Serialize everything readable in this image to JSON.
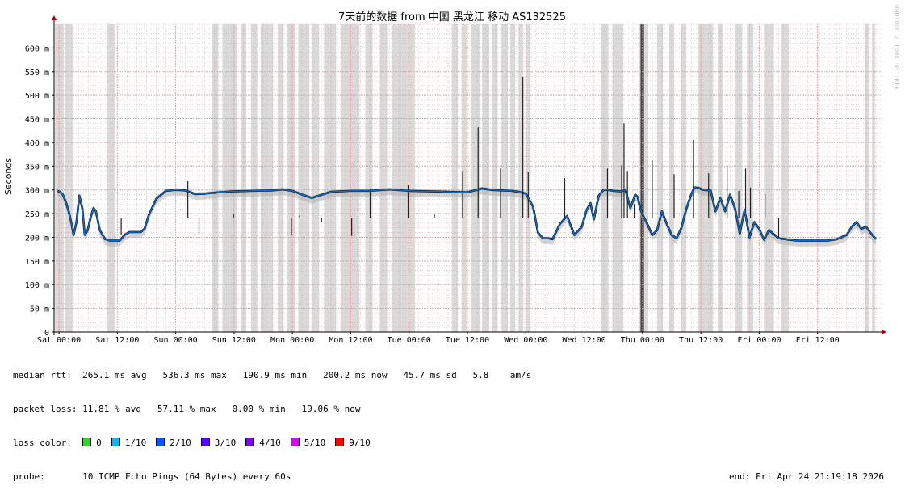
{
  "chart_data": {
    "type": "line",
    "title": "7天前的数据 from 中国 黑龙江 移动 AS132525",
    "ylabel": "Seconds",
    "ylim": [
      0,
      0.65
    ],
    "y_ticks": [
      0,
      0.05,
      0.1,
      0.15,
      0.2,
      0.25,
      0.3,
      0.35,
      0.4,
      0.45,
      0.5,
      0.55,
      0.6
    ],
    "y_tick_labels": [
      "0",
      "50 m",
      "100 m",
      "150 m",
      "200 m",
      "250 m",
      "300 m",
      "350 m",
      "400 m",
      "450 m",
      "500 m",
      "550 m",
      "600 m"
    ],
    "x_unit": "hours",
    "xlim": [
      -1,
      169
    ],
    "x_tick_labels": [
      "Sat 00:00",
      "Sat 12:00",
      "Sun 00:00",
      "Sun 12:00",
      "Mon 00:00",
      "Mon 12:00",
      "Tue 00:00",
      "Tue 12:00",
      "Wed 00:00",
      "Wed 12:00",
      "Thu 00:00",
      "Thu 12:00",
      "Fri 00:00",
      "Fri 12:00"
    ],
    "x_tick_values": [
      0,
      12,
      24,
      36,
      48,
      60,
      72,
      84,
      96,
      108,
      120,
      132,
      144,
      156
    ],
    "grid": true,
    "series": [
      {
        "color": "#0a6fd6",
        "x": [
          -0.3,
          0.2,
          0.8,
          1.4,
          2.0,
          2.6,
          3.0,
          3.6,
          4.2,
          4.8,
          5.3,
          5.9,
          6.5,
          7.1,
          7.6,
          8.4,
          9.5,
          10.5,
          11.5,
          12.5,
          13.5,
          14.5,
          15.3,
          16.0,
          16.8,
          17.6,
          18.5,
          20.0,
          22.0,
          24.0,
          26.0,
          28.0,
          30.0,
          33.0,
          36.0,
          40.0,
          44.0,
          46.0,
          48.0,
          50.0,
          52.0,
          56.0,
          60.0,
          64.0,
          68.0,
          72.0,
          76.0,
          80.0,
          84.0,
          87.0,
          89.0,
          91.0,
          93.0,
          94.5,
          96.0,
          97.5,
          98.5,
          99.5,
          100.5,
          101.5,
          103.0,
          104.5,
          106.0,
          107.5,
          108.5,
          109.3,
          110.0,
          111.0,
          112.0,
          113.0,
          114.0,
          115.5,
          116.5,
          117.5,
          118.5,
          119.0,
          119.5,
          120.0,
          121.0,
          122.0,
          123.0,
          124.0,
          125.0,
          126.0,
          127.0,
          128.0,
          129.0,
          130.0,
          130.7,
          131.5,
          132.5,
          134.0,
          135.0,
          136.0,
          137.0,
          138.0,
          139.0,
          140.0,
          141.0,
          142.0,
          143.0,
          144.0,
          145.0,
          146.0,
          148.0,
          150.0,
          152.0,
          154.0,
          156.0,
          158.0,
          160.0,
          162.0,
          163.0,
          164.0,
          165.0,
          166.0,
          167.0,
          168.0
        ],
        "y": [
          0.298,
          0.296,
          0.29,
          0.275,
          0.255,
          0.228,
          0.205,
          0.232,
          0.288,
          0.262,
          0.205,
          0.215,
          0.242,
          0.262,
          0.255,
          0.215,
          0.196,
          0.193,
          0.193,
          0.193,
          0.205,
          0.211,
          0.211,
          0.211,
          0.211,
          0.218,
          0.248,
          0.281,
          0.298,
          0.3,
          0.299,
          0.291,
          0.292,
          0.295,
          0.297,
          0.298,
          0.299,
          0.301,
          0.298,
          0.29,
          0.283,
          0.296,
          0.298,
          0.298,
          0.301,
          0.298,
          0.297,
          0.296,
          0.295,
          0.303,
          0.3,
          0.299,
          0.298,
          0.296,
          0.292,
          0.265,
          0.21,
          0.198,
          0.198,
          0.196,
          0.228,
          0.245,
          0.205,
          0.222,
          0.258,
          0.272,
          0.238,
          0.288,
          0.3,
          0.3,
          0.298,
          0.297,
          0.3,
          0.262,
          0.29,
          0.285,
          0.262,
          0.248,
          0.228,
          0.205,
          0.215,
          0.255,
          0.228,
          0.205,
          0.198,
          0.22,
          0.26,
          0.29,
          0.305,
          0.304,
          0.3,
          0.299,
          0.255,
          0.283,
          0.255,
          0.29,
          0.262,
          0.208,
          0.258,
          0.2,
          0.232,
          0.218,
          0.195,
          0.215,
          0.198,
          0.195,
          0.193,
          0.193,
          0.193,
          0.193,
          0.196,
          0.205,
          0.222,
          0.232,
          0.218,
          0.222,
          0.208,
          0.196
        ]
      }
    ],
    "spikes": {
      "x": [
        12.8,
        26.5,
        28.8,
        35.9,
        47.8,
        49.5,
        54.0,
        60.2,
        64.0,
        71.8,
        77.2,
        83.0,
        86.2,
        90.8,
        95.4,
        96.5,
        104.0,
        112.8,
        115.7,
        116.2,
        116.9,
        118.3,
        122.0,
        126.5,
        130.5,
        133.6,
        137.4,
        139.8,
        141.2,
        142.2,
        145.2,
        148.0
      ],
      "y": [
        0.205,
        0.32,
        0.205,
        0.249,
        0.205,
        0.247,
        0.232,
        0.203,
        0.302,
        0.31,
        0.249,
        0.34,
        0.432,
        0.345,
        0.538,
        0.337,
        0.325,
        0.345,
        0.352,
        0.44,
        0.34,
        0.27,
        0.362,
        0.333,
        0.405,
        0.335,
        0.35,
        0.298,
        0.345,
        0.305,
        0.29,
        0.2
      ]
    },
    "loss_bands": [
      [
        -0.8,
        1.0
      ],
      [
        1.3,
        2.8
      ],
      [
        10.0,
        11.5
      ],
      [
        31.5,
        32.8
      ],
      [
        33.6,
        36.5
      ],
      [
        37.5,
        38.5
      ],
      [
        39.5,
        40.8
      ],
      [
        41.5,
        44.0
      ],
      [
        45.0,
        46.2
      ],
      [
        46.8,
        48.5
      ],
      [
        49.2,
        51.5
      ],
      [
        52.0,
        53.5
      ],
      [
        54.5,
        57.0
      ],
      [
        58.0,
        61.8
      ],
      [
        63.0,
        64.5
      ],
      [
        66.0,
        67.5
      ],
      [
        68.5,
        73.2
      ],
      [
        80.8,
        82.0
      ],
      [
        82.8,
        83.8
      ],
      [
        84.8,
        86.5
      ],
      [
        87.0,
        88.5
      ],
      [
        89.0,
        90.2
      ],
      [
        91.0,
        92.3
      ],
      [
        92.8,
        93.8
      ],
      [
        94.5,
        95.5
      ],
      [
        96.0,
        97.0
      ],
      [
        111.5,
        113.0
      ],
      [
        113.8,
        116.0
      ],
      [
        119.2,
        121.2
      ],
      [
        123.0,
        124.2
      ],
      [
        125.5,
        126.5
      ],
      [
        128.0,
        129.0
      ],
      [
        131.5,
        134.5
      ],
      [
        135.5,
        136.5
      ],
      [
        139.0,
        140.5
      ],
      [
        141.5,
        142.8
      ],
      [
        145.0,
        147.0
      ],
      [
        148.5,
        150.0
      ],
      [
        165.8,
        166.5
      ],
      [
        167.2,
        167.8
      ]
    ],
    "dense_loss_bands": [
      [
        119.6,
        120.3
      ]
    ],
    "watermark": "RRDTOOL / TOBI OETIKER"
  },
  "stats": {
    "median_rtt_label": "median rtt:",
    "median_rtt_values": "265.1 ms avg   536.3 ms max   190.9 ms min   200.2 ms now   45.7 ms sd   5.8    am/s",
    "packet_loss_label": "packet loss:",
    "packet_loss_values": "11.81 % avg   57.11 % max   0.00 % min   19.06 % now",
    "loss_color_label": "loss color:",
    "loss_colors": [
      {
        "label": "0",
        "color": "#22dd22"
      },
      {
        "label": "1/10",
        "color": "#00b8ff"
      },
      {
        "label": "2/10",
        "color": "#0059ff"
      },
      {
        "label": "3/10",
        "color": "#5e00ff"
      },
      {
        "label": "4/10",
        "color": "#7e00ff"
      },
      {
        "label": "5/10",
        "color": "#dd00ff"
      },
      {
        "label": "9/10",
        "color": "#ff0000"
      }
    ],
    "probe_label": "probe:",
    "probe_value": "10 ICMP Echo Pings (64 Bytes) every 60s",
    "end_text": "end: Fri Apr 24 21:19:18 2026"
  }
}
